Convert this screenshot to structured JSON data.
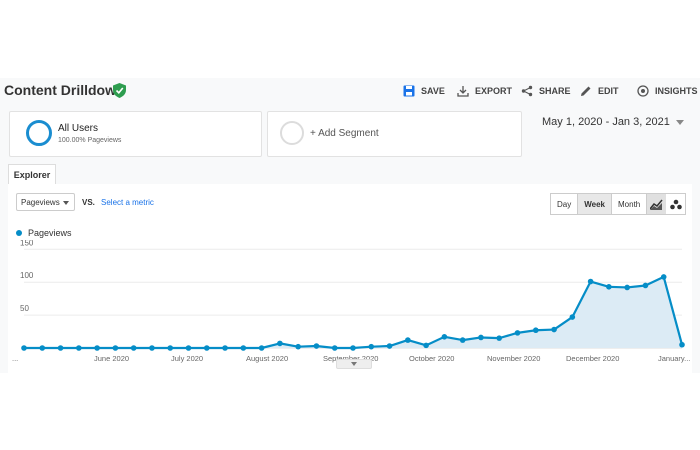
{
  "header": {
    "title": "Content Drilldown",
    "actions": [
      {
        "label": "SAVE",
        "icon": "save-icon"
      },
      {
        "label": "EXPORT",
        "icon": "export-icon"
      },
      {
        "label": "SHARE",
        "icon": "share-icon"
      },
      {
        "label": "EDIT",
        "icon": "edit-icon"
      },
      {
        "label": "INSIGHTS",
        "icon": "insights-icon"
      }
    ]
  },
  "segments": {
    "primary": {
      "label": "All Users",
      "sub": "100.00% Pageviews"
    },
    "add_label": "+ Add Segment"
  },
  "date_range": "May 1, 2020 - Jan 3, 2021",
  "tabs": {
    "explorer": "Explorer"
  },
  "controls": {
    "metric": "Pageviews",
    "vs": "VS.",
    "select_metric": "Select a metric",
    "granularity": [
      "Day",
      "Week",
      "Month"
    ],
    "active_granularity": "Week"
  },
  "chart_data": {
    "type": "area",
    "series": [
      {
        "name": "Pageviews",
        "color": "#058dc7",
        "values": [
          0,
          0,
          0,
          0,
          0,
          0,
          0,
          0,
          0,
          0,
          0,
          0,
          0,
          0,
          7,
          2,
          3,
          0,
          0,
          2,
          3,
          12,
          4,
          17,
          12,
          16,
          15,
          23,
          27,
          28,
          47,
          101,
          93,
          92,
          95,
          108,
          5
        ]
      }
    ],
    "ylim": [
      0,
      155
    ],
    "yticks": [
      50,
      100,
      150
    ],
    "xlabels": [
      "...",
      "June 2020",
      "July 2020",
      "August 2020",
      "September 2020",
      "October 2020",
      "November 2020",
      "December 2020",
      "January..."
    ],
    "accent": "#058dc7",
    "fill": "#dcebf5"
  }
}
